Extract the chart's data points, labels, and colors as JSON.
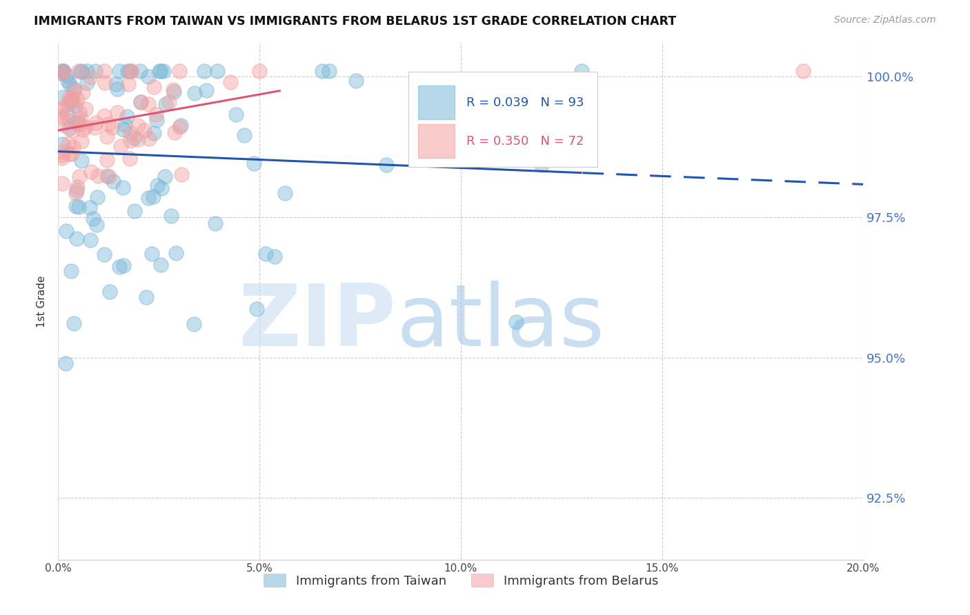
{
  "title": "IMMIGRANTS FROM TAIWAN VS IMMIGRANTS FROM BELARUS 1ST GRADE CORRELATION CHART",
  "source": "Source: ZipAtlas.com",
  "ylabel": "1st Grade",
  "xlim": [
    0.0,
    0.2
  ],
  "ylim": [
    0.914,
    1.006
  ],
  "yticks": [
    0.925,
    0.95,
    0.975,
    1.0
  ],
  "ytick_labels": [
    "92.5%",
    "95.0%",
    "97.5%",
    "100.0%"
  ],
  "xticks": [
    0.0,
    0.05,
    0.1,
    0.15,
    0.2
  ],
  "xtick_labels": [
    "0.0%",
    "5.0%",
    "10.0%",
    "15.0%",
    "20.0%"
  ],
  "taiwan_color": "#7ab8d9",
  "belarus_color": "#f4a0a0",
  "taiwan_line_color": "#2255aa",
  "belarus_line_color": "#dd5577",
  "taiwan_R": 0.039,
  "taiwan_N": 93,
  "belarus_R": 0.35,
  "belarus_N": 72,
  "watermark_zip": "ZIP",
  "watermark_atlas": "atlas",
  "background_color": "#ffffff",
  "legend_taiwan_label": "Immigrants from Taiwan",
  "legend_belarus_label": "Immigrants from Belarus"
}
